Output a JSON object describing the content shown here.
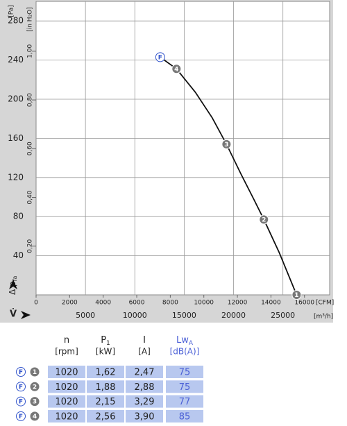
{
  "chart_data": {
    "type": "line",
    "y_label": "Δ p",
    "y_label_sub": "fa",
    "y2_label": "[in H₂O]",
    "y_unit": "[Pa]",
    "x_label": "V̇",
    "x_unit": "[CFM]",
    "x2_unit": "[m³/h]",
    "xlim": [
      0,
      17500
    ],
    "xticks": [
      0,
      2000,
      4000,
      6000,
      8000,
      10000,
      12000,
      14000,
      16000
    ],
    "x2lim": [
      0,
      29732
    ],
    "x2ticks": [
      5000,
      10000,
      15000,
      20000,
      25000
    ],
    "ylim": [
      0,
      300
    ],
    "yticks": [
      40,
      80,
      120,
      160,
      200,
      240,
      280
    ],
    "y2lim": [
      0,
      1.2045
    ],
    "y2ticks": [
      {
        "value": 0.2,
        "label": "0,20"
      },
      {
        "value": 0.4,
        "label": "0,40"
      },
      {
        "value": 0.6,
        "label": "0,60"
      },
      {
        "value": 0.8,
        "label": "0,80"
      },
      {
        "value": 1.0,
        "label": "1,00"
      }
    ],
    "grid": true,
    "series": [
      {
        "color": "#111111",
        "x": [
          7400,
          8370,
          9500,
          10500,
          11350,
          12200,
          13000,
          13580,
          14500,
          15530
        ],
        "values": [
          243,
          231,
          207,
          181,
          154,
          124,
          97,
          77,
          43,
          0
        ],
        "marker_labels": [
          "F",
          "4",
          null,
          null,
          "3",
          null,
          null,
          "2",
          null,
          "1"
        ]
      }
    ]
  },
  "table": {
    "header": [
      {
        "name": "n",
        "unit": "[rpm]"
      },
      {
        "name": "P",
        "sub": "1",
        "unit": "[kW]"
      },
      {
        "name": "I",
        "unit": "[A]"
      },
      {
        "name": "Lw",
        "sub": "A",
        "unit": "[dB(A)]"
      }
    ],
    "rows": [
      {
        "curve": "F",
        "point": "1",
        "cells": [
          "1020",
          "1,62",
          "2,47",
          "75"
        ]
      },
      {
        "curve": "F",
        "point": "2",
        "cells": [
          "1020",
          "1,88",
          "2,88",
          "75"
        ]
      },
      {
        "curve": "F",
        "point": "3",
        "cells": [
          "1020",
          "2,15",
          "3,29",
          "77"
        ]
      },
      {
        "curve": "F",
        "point": "4",
        "cells": [
          "1020",
          "2,56",
          "3,90",
          "85"
        ]
      }
    ]
  }
}
